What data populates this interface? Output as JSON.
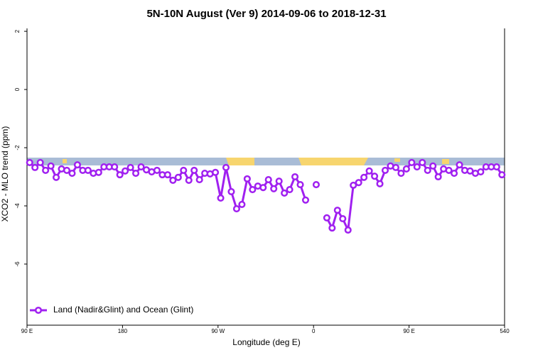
{
  "chart_data": {
    "type": "line",
    "title": "5N-10N August (Ver 9)   2014-09-06 to 2018-12-31",
    "x_label": "Longitude (deg E)",
    "y_label": "XCO2 - MLO trend (ppm)",
    "xlim": [
      90,
      540
    ],
    "ylim": [
      -8.1,
      2.1
    ],
    "xticks": [
      {
        "value": 90,
        "label": "90 E"
      },
      180,
      {
        "value": 270,
        "label": "90 W"
      },
      {
        "value": 360,
        "label": "0"
      },
      {
        "value": 450,
        "label": "90 E"
      },
      540
    ],
    "yticks": [
      -6,
      -4,
      -2,
      0,
      2
    ],
    "legend": "bottom-left",
    "x": [
      92.5,
      97.5,
      102.5,
      107.5,
      112.5,
      117.5,
      122.5,
      127.5,
      132.5,
      137.5,
      142.5,
      147.5,
      152.5,
      157.5,
      162.5,
      167.5,
      172.5,
      177.5,
      182.5,
      187.5,
      192.5,
      197.5,
      202.5,
      207.5,
      212.5,
      217.5,
      222.5,
      227.5,
      232.5,
      237.5,
      242.5,
      247.5,
      252.5,
      257.5,
      262.5,
      267.5,
      272.5,
      277.5,
      282.5,
      287.5,
      292.5,
      297.5,
      302.5,
      307.5,
      312.5,
      317.5,
      322.5,
      327.5,
      332.5,
      337.5,
      342.5,
      347.5,
      352.5,
      357.5,
      362.5,
      367.5,
      372.5,
      377.5,
      382.5,
      387.5,
      392.5,
      397.5,
      402.5,
      407.5,
      412.5,
      417.5,
      422.5,
      427.5,
      432.5,
      437.5,
      442.5,
      447.5,
      452.5,
      457.5,
      462.5,
      467.5,
      472.5,
      477.5,
      482.5,
      487.5,
      492.5,
      497.5,
      502.5,
      507.5,
      512.5,
      517.5,
      522.5,
      527.5,
      532.5,
      537.5
    ],
    "series": [
      {
        "name": "Land (Nadir&Glint) and Ocean (Glint)",
        "color": "#a020f0",
        "values": [
          -2.51,
          -2.68,
          -2.51,
          -2.78,
          -2.63,
          -3.02,
          -2.73,
          -2.78,
          -2.88,
          -2.59,
          -2.78,
          -2.78,
          -2.88,
          -2.85,
          -2.66,
          -2.66,
          -2.66,
          -2.93,
          -2.8,
          -2.68,
          -2.88,
          -2.66,
          -2.76,
          -2.83,
          -2.78,
          -2.93,
          -2.93,
          -3.12,
          -3.02,
          -2.78,
          -3.12,
          -2.78,
          -3.1,
          -2.88,
          -2.9,
          -2.85,
          -3.73,
          -2.68,
          -3.51,
          -4.1,
          -3.95,
          -3.07,
          -3.44,
          -3.32,
          -3.37,
          -3.1,
          -3.41,
          -3.15,
          -3.56,
          -3.44,
          -3.0,
          -3.27,
          -3.8,
          null,
          -3.27,
          null,
          -4.41,
          -4.76,
          -4.15,
          -4.44,
          -4.83,
          -3.29,
          -3.2,
          -3.02,
          -2.8,
          -2.98,
          -3.24,
          -2.78,
          -2.63,
          -2.68,
          -2.88,
          -2.73,
          -2.51,
          -2.66,
          -2.51,
          -2.78,
          -2.63,
          -3.0,
          -2.73,
          -2.78,
          -2.88,
          -2.59,
          -2.78,
          -2.8,
          -2.88,
          -2.83,
          -2.66,
          -2.66,
          -2.66,
          -2.93
        ]
      }
    ]
  }
}
